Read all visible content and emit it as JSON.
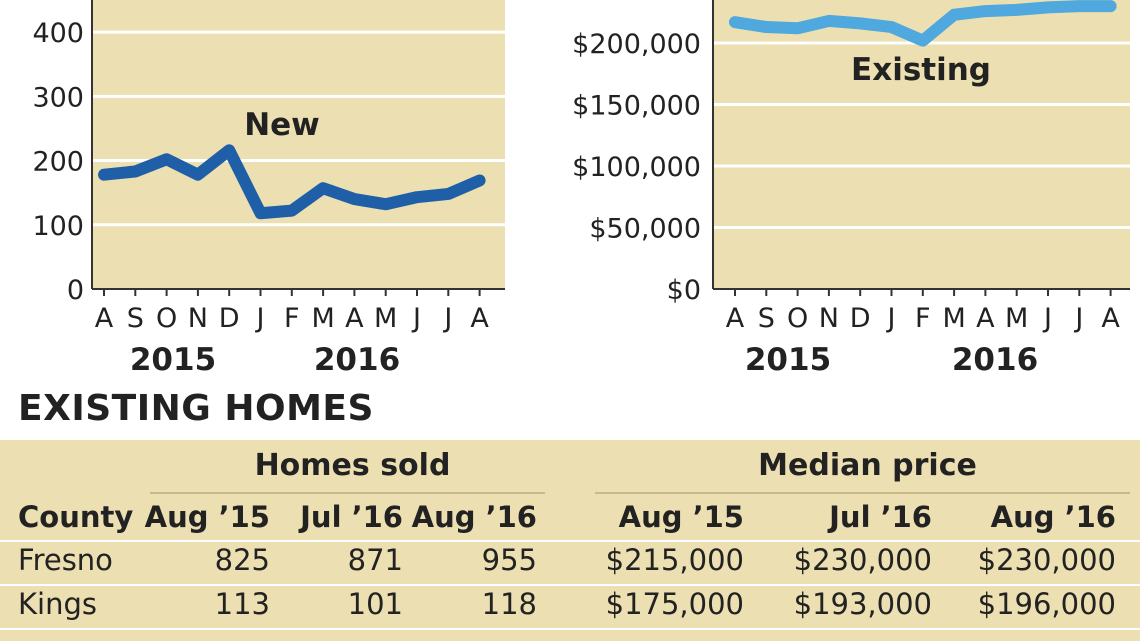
{
  "chart_data": [
    {
      "type": "line",
      "title": "",
      "xlabel": "",
      "ylabel": "",
      "ylim": [
        0,
        450
      ],
      "yticks": [
        0,
        100,
        200,
        300,
        400
      ],
      "ytick_labels": [
        "0",
        "100",
        "200",
        "300",
        "400"
      ],
      "categories": [
        "Aug 2015",
        "Sep 2015",
        "Oct 2015",
        "Nov 2015",
        "Dec 2015",
        "Jan 2016",
        "Feb 2016",
        "Mar 2016",
        "Apr 2016",
        "May 2016",
        "Jun 2016",
        "Jul 2016",
        "Aug 2016"
      ],
      "month_labels": [
        "A",
        "S",
        "O",
        "N",
        "D",
        "J",
        "F",
        "M",
        "A",
        "M",
        "J",
        "J",
        "A"
      ],
      "year_labels": [
        "2015",
        "2016"
      ],
      "grid": true,
      "series": [
        {
          "name": "New",
          "color": "#1f5fa8",
          "values": [
            178,
            183,
            202,
            178,
            216,
            118,
            122,
            157,
            140,
            132,
            143,
            148,
            169
          ]
        }
      ]
    },
    {
      "type": "line",
      "title": "",
      "xlabel": "",
      "ylabel": "",
      "ylim": [
        0,
        235000
      ],
      "yticks": [
        0,
        50000,
        100000,
        150000,
        200000
      ],
      "ytick_labels": [
        "$0",
        "$50,000",
        "$100,000",
        "$150,000",
        "$200,000"
      ],
      "categories": [
        "Aug 2015",
        "Sep 2015",
        "Oct 2015",
        "Nov 2015",
        "Dec 2015",
        "Jan 2016",
        "Feb 2016",
        "Mar 2016",
        "Apr 2016",
        "May 2016",
        "Jun 2016",
        "Jul 2016",
        "Aug 2016"
      ],
      "month_labels": [
        "A",
        "S",
        "O",
        "N",
        "D",
        "J",
        "F",
        "M",
        "A",
        "M",
        "J",
        "J",
        "A"
      ],
      "year_labels": [
        "2015",
        "2016"
      ],
      "grid": true,
      "series": [
        {
          "name": "Existing",
          "color": "#4fa8de",
          "values": [
            217000,
            213000,
            212000,
            218000,
            216000,
            213000,
            202000,
            223000,
            226000,
            227000,
            229000,
            230000,
            230000
          ]
        }
      ]
    }
  ],
  "table": {
    "section_title": "EXISTING HOMES",
    "group_homes_sold": "Homes sold",
    "group_median_price": "Median price",
    "headers": [
      "County",
      "Aug ’15",
      "Jul ’16",
      "Aug ’16",
      "Aug ’15",
      "Jul ’16",
      "Aug ’16"
    ],
    "rows": [
      [
        "Fresno",
        "825",
        "871",
        "955",
        "$215,000",
        "$230,000",
        "$230,000"
      ],
      [
        "Kings",
        "113",
        "101",
        "118",
        "$175,000",
        "$193,000",
        "$196,000"
      ]
    ]
  }
}
